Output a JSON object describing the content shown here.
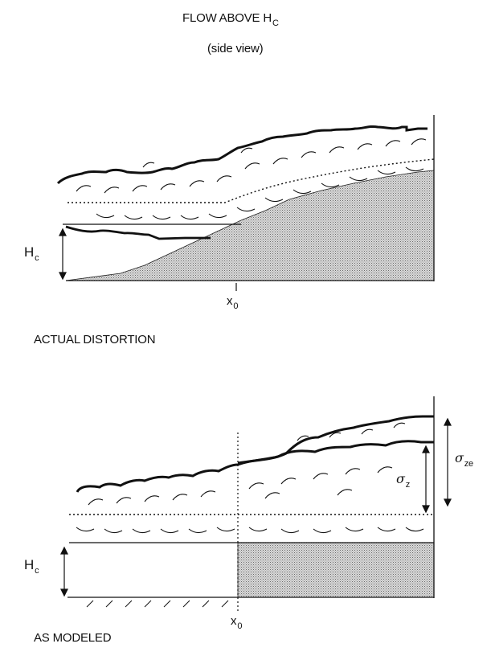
{
  "title": {
    "main": "FLOW ABOVE H",
    "sub": "C"
  },
  "subtitle": "(side view)",
  "top_panel": {
    "caption": "ACTUAL DISTORTION",
    "hc_label": {
      "main": "H",
      "sub": "c"
    },
    "x0_label": {
      "main": "x",
      "sub": "0"
    }
  },
  "bottom_panel": {
    "caption": "AS MODELED",
    "hc_label": {
      "main": "H",
      "sub": "c"
    },
    "x0_label": {
      "main": "x",
      "sub": "0"
    },
    "sigma_z_label": {
      "main": "σ",
      "sub": "z"
    },
    "sigma_ze_label": {
      "main": "σ",
      "sub": "ze"
    }
  }
}
